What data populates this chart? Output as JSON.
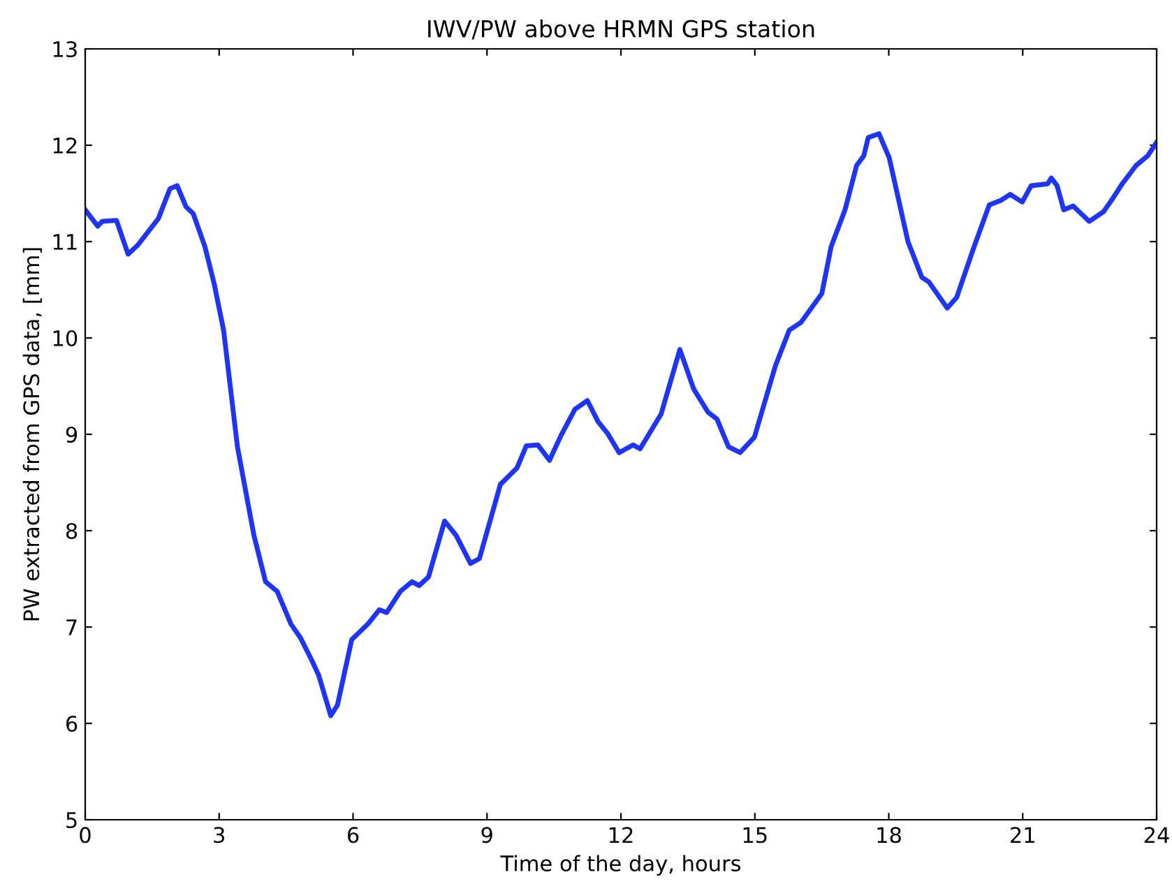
{
  "chart_data": {
    "type": "line",
    "title": "IWV/PW above HRMN GPS station",
    "xlabel": "Time of the day, hours",
    "ylabel": "PW extracted from GPS data, [mm]",
    "xlim": [
      0,
      24
    ],
    "xticks": [
      0,
      3,
      6,
      9,
      12,
      15,
      18,
      21,
      24
    ],
    "ylim": [
      5,
      13
    ],
    "yticks": [
      5,
      6,
      7,
      8,
      9,
      10,
      11,
      12,
      13
    ],
    "grid": false,
    "legend": false,
    "marker": "none",
    "line_style": "solid",
    "series": [
      {
        "color": "#1f35f5",
        "x": [
          0.0,
          0.28,
          0.38,
          0.7,
          0.96,
          1.17,
          1.64,
          1.9,
          2.06,
          2.26,
          2.42,
          2.68,
          2.89,
          3.1,
          3.41,
          3.78,
          4.04,
          4.3,
          4.61,
          4.82,
          5.08,
          5.23,
          5.5,
          5.65,
          5.97,
          6.33,
          6.59,
          6.75,
          7.06,
          7.32,
          7.48,
          7.69,
          8.05,
          8.31,
          8.63,
          8.83,
          9.3,
          9.67,
          9.88,
          10.14,
          10.4,
          10.66,
          10.97,
          11.25,
          11.49,
          11.7,
          11.96,
          12.27,
          12.43,
          12.9,
          13.32,
          13.63,
          13.95,
          14.15,
          14.41,
          14.67,
          14.99,
          15.46,
          15.77,
          16.03,
          16.5,
          16.71,
          17.02,
          17.28,
          17.44,
          17.54,
          17.78,
          18.01,
          18.43,
          18.74,
          18.9,
          19.31,
          19.52,
          19.89,
          20.25,
          20.52,
          20.72,
          20.99,
          21.19,
          21.56,
          21.64,
          21.77,
          21.92,
          22.13,
          22.49,
          22.81,
          23.02,
          23.23,
          23.54,
          23.8,
          24.0
        ],
        "values": [
          11.33,
          11.16,
          11.21,
          11.22,
          10.87,
          10.96,
          11.24,
          11.55,
          11.58,
          11.36,
          11.29,
          10.95,
          10.56,
          10.08,
          8.87,
          7.95,
          7.47,
          7.37,
          7.03,
          6.89,
          6.65,
          6.5,
          6.08,
          6.19,
          6.87,
          7.03,
          7.18,
          7.15,
          7.37,
          7.47,
          7.43,
          7.52,
          8.1,
          7.95,
          7.66,
          7.71,
          8.48,
          8.65,
          8.88,
          8.89,
          8.73,
          8.99,
          9.26,
          9.35,
          9.13,
          9.01,
          8.81,
          8.89,
          8.85,
          9.21,
          9.88,
          9.47,
          9.23,
          9.16,
          8.87,
          8.81,
          8.97,
          9.71,
          10.08,
          10.16,
          10.46,
          10.95,
          11.33,
          11.79,
          11.89,
          12.08,
          12.12,
          11.87,
          11.0,
          10.63,
          10.58,
          10.31,
          10.42,
          10.92,
          11.38,
          11.43,
          11.49,
          11.41,
          11.58,
          11.6,
          11.66,
          11.58,
          11.33,
          11.37,
          11.21,
          11.31,
          11.45,
          11.6,
          11.79,
          11.89,
          12.03
        ]
      }
    ]
  }
}
